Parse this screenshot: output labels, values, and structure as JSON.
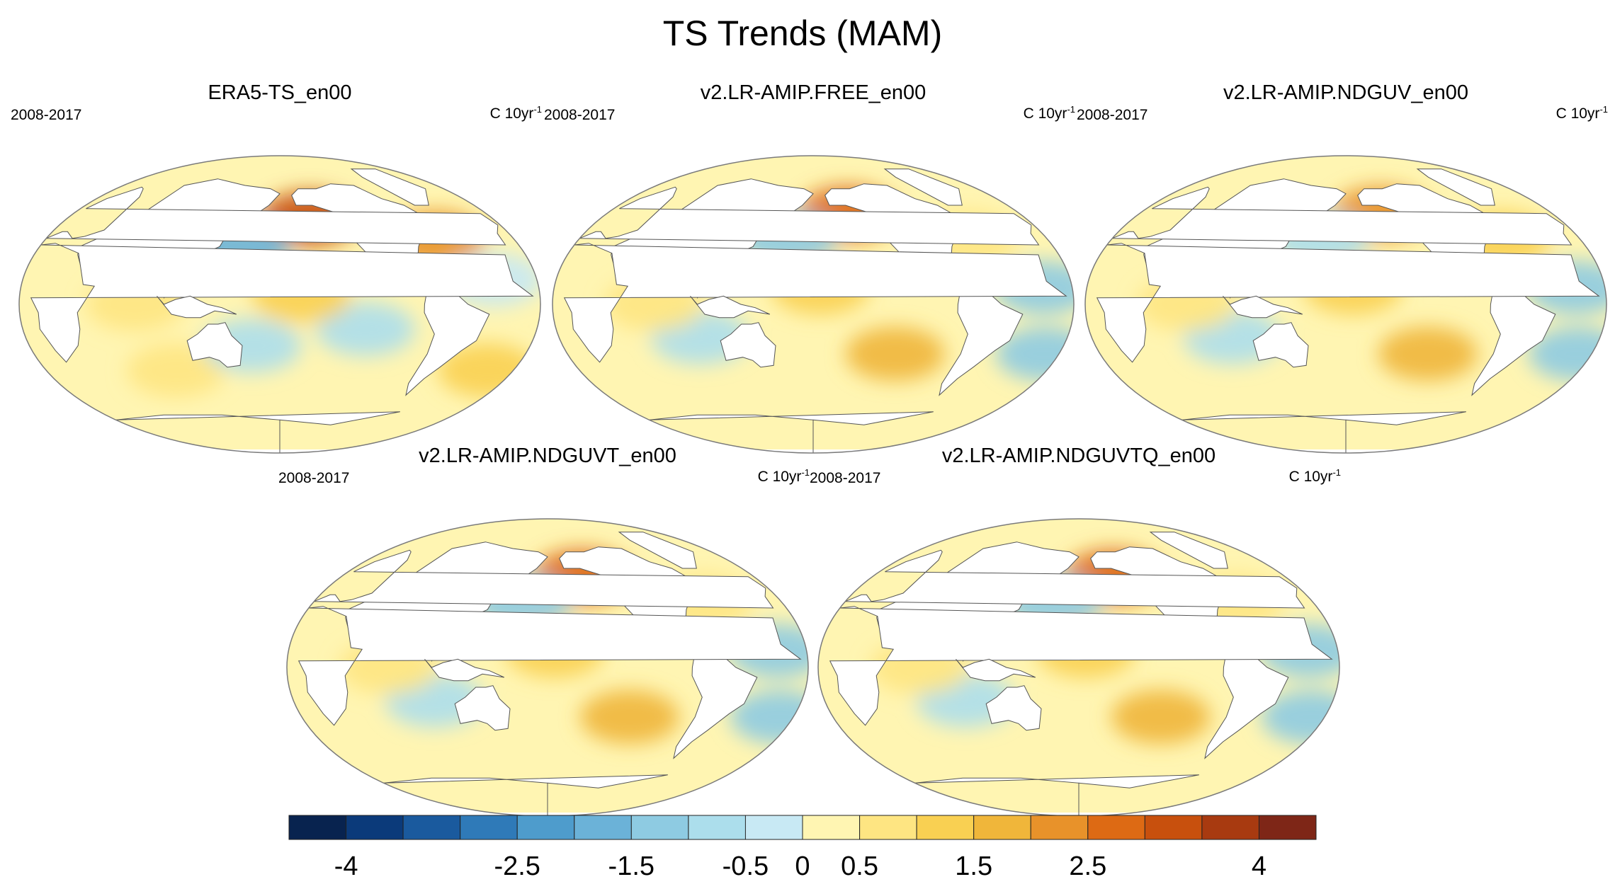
{
  "figure_title": "TS Trends (MAM)",
  "chart_data": {
    "type": "heatmap",
    "title": "TS Trends (MAM)",
    "colorbar": {
      "bounds": [
        -4.5,
        -4,
        -3.5,
        -3,
        -2.5,
        -2,
        -1.5,
        -1,
        -0.5,
        0,
        0.5,
        1,
        1.5,
        2,
        2.5,
        3,
        3.5,
        4,
        4.5
      ],
      "colors": [
        "#08234f",
        "#0b3a7a",
        "#1a5a9e",
        "#2f7ab8",
        "#4e9ccc",
        "#6bb2d8",
        "#8ecbe2",
        "#acdeec",
        "#c8e9f4",
        "#fff5b2",
        "#fee582",
        "#f9d052",
        "#f0b63a",
        "#e8922a",
        "#dd6a14",
        "#c8500d",
        "#a83a10",
        "#7e2617"
      ],
      "tick_labels": [
        "-4",
        "-2.5",
        "-1.5",
        "-0.5",
        "0",
        "0.5",
        "1.5",
        "2.5",
        "4"
      ],
      "tick_positions": [
        -4,
        -2.5,
        -1.5,
        -0.5,
        0,
        0.5,
        1.5,
        2.5,
        4
      ]
    },
    "panels": [
      {
        "title": "ERA5-TS_en00",
        "period": "2008-2017",
        "units": "C 10yr",
        "units_exp": "-1",
        "anomalies": [
          {
            "lon": -155,
            "lat": 52,
            "value": 3.2
          },
          {
            "lon": 150,
            "lat": 35,
            "value": -1.8
          },
          {
            "lon": -60,
            "lat": 40,
            "value": 2.2
          },
          {
            "lon": -120,
            "lat": -15,
            "value": -0.8
          },
          {
            "lon": -165,
            "lat": 5,
            "value": 1.2
          },
          {
            "lon": 80,
            "lat": 0,
            "value": 0.8
          },
          {
            "lon": -30,
            "lat": 15,
            "value": -0.4
          },
          {
            "lon": -20,
            "lat": -40,
            "value": 1.0
          },
          {
            "lon": 100,
            "lat": -40,
            "value": 0.6
          },
          {
            "lon": 160,
            "lat": -25,
            "value": -0.7
          }
        ]
      },
      {
        "title": "v2.LR-AMIP.FREE_en00",
        "period": "2008-2017",
        "units": "C 10yr",
        "units_exp": "-1",
        "anomalies": [
          {
            "lon": -150,
            "lat": 55,
            "value": 2.5
          },
          {
            "lon": 160,
            "lat": 40,
            "value": -1.2
          },
          {
            "lon": -175,
            "lat": 10,
            "value": 1.0
          },
          {
            "lon": -120,
            "lat": -30,
            "value": 1.6
          },
          {
            "lon": -20,
            "lat": 10,
            "value": -1.4
          },
          {
            "lon": -10,
            "lat": -30,
            "value": -1.5
          },
          {
            "lon": 100,
            "lat": -20,
            "value": -0.8
          },
          {
            "lon": 70,
            "lat": 0,
            "value": 0.7
          },
          {
            "lon": -60,
            "lat": 40,
            "value": 0.8
          }
        ]
      },
      {
        "title": "v2.LR-AMIP.NDGUV_en00",
        "period": "2008-2017",
        "units": "C 10yr",
        "units_exp": "-1",
        "anomalies": [
          {
            "lon": -150,
            "lat": 55,
            "value": 2.4
          },
          {
            "lon": 160,
            "lat": 40,
            "value": -1.0
          },
          {
            "lon": -175,
            "lat": 10,
            "value": 1.0
          },
          {
            "lon": -120,
            "lat": -30,
            "value": 1.5
          },
          {
            "lon": -20,
            "lat": 10,
            "value": -1.3
          },
          {
            "lon": -10,
            "lat": -30,
            "value": -1.4
          },
          {
            "lon": 100,
            "lat": -20,
            "value": -0.8
          },
          {
            "lon": 70,
            "lat": 0,
            "value": 0.7
          },
          {
            "lon": -60,
            "lat": 40,
            "value": 1.0
          }
        ]
      },
      {
        "title": "v2.LR-AMIP.NDGUVT_en00",
        "period": "2008-2017",
        "units": "C 10yr",
        "units_exp": "-1",
        "anomalies": [
          {
            "lon": -150,
            "lat": 55,
            "value": 2.5
          },
          {
            "lon": 160,
            "lat": 40,
            "value": -1.3
          },
          {
            "lon": -175,
            "lat": 10,
            "value": 1.0
          },
          {
            "lon": -120,
            "lat": -30,
            "value": 1.6
          },
          {
            "lon": -20,
            "lat": 10,
            "value": -1.4
          },
          {
            "lon": -10,
            "lat": -30,
            "value": -1.5
          },
          {
            "lon": 100,
            "lat": -20,
            "value": -0.8
          },
          {
            "lon": 70,
            "lat": 0,
            "value": 0.7
          },
          {
            "lon": -60,
            "lat": 40,
            "value": 0.8
          }
        ]
      },
      {
        "title": "v2.LR-AMIP.NDGUVTQ_en00",
        "period": "2008-2017",
        "units": "C 10yr",
        "units_exp": "-1",
        "anomalies": [
          {
            "lon": -150,
            "lat": 55,
            "value": 2.6
          },
          {
            "lon": 160,
            "lat": 40,
            "value": -1.3
          },
          {
            "lon": -175,
            "lat": 10,
            "value": 1.0
          },
          {
            "lon": -120,
            "lat": -30,
            "value": 1.6
          },
          {
            "lon": -20,
            "lat": 10,
            "value": -1.4
          },
          {
            "lon": -10,
            "lat": -30,
            "value": -1.5
          },
          {
            "lon": 100,
            "lat": -20,
            "value": -0.8
          },
          {
            "lon": 70,
            "lat": 0,
            "value": 0.7
          },
          {
            "lon": -60,
            "lat": 40,
            "value": 0.9
          }
        ]
      }
    ]
  }
}
